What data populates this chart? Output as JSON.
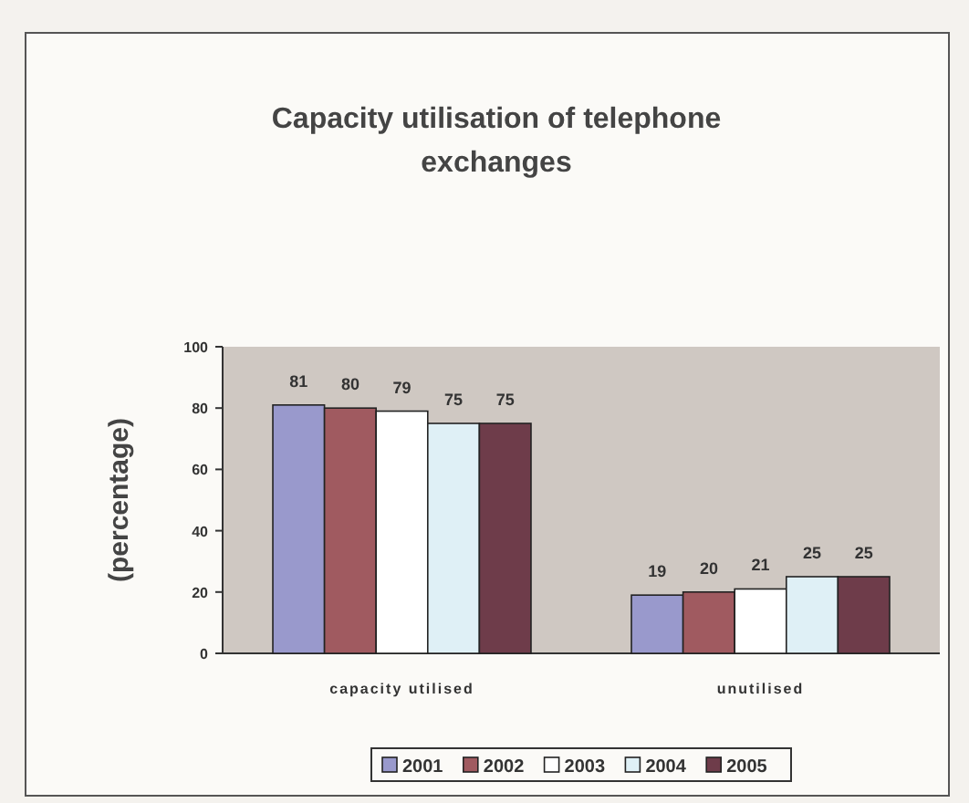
{
  "chart_data": {
    "type": "bar",
    "title": "Capacity utilisation of telephone exchanges",
    "ylabel": "(percentage)",
    "categories": [
      "capacity utilised",
      "unutilised"
    ],
    "series": [
      {
        "name": "2001",
        "color": "#9999cc",
        "values": [
          81,
          19
        ]
      },
      {
        "name": "2002",
        "color": "#a05a60",
        "values": [
          80,
          20
        ]
      },
      {
        "name": "2003",
        "color": "#ffffff",
        "values": [
          79,
          21
        ]
      },
      {
        "name": "2004",
        "color": "#dff0f6",
        "values": [
          75,
          25
        ]
      },
      {
        "name": "2005",
        "color": "#6e3c4a",
        "values": [
          75,
          25
        ]
      }
    ],
    "ylim": [
      0,
      100
    ],
    "yticks": [
      0,
      20,
      40,
      60,
      80,
      100
    ],
    "grid": false,
    "legend": "bottom",
    "data_labels": true
  }
}
